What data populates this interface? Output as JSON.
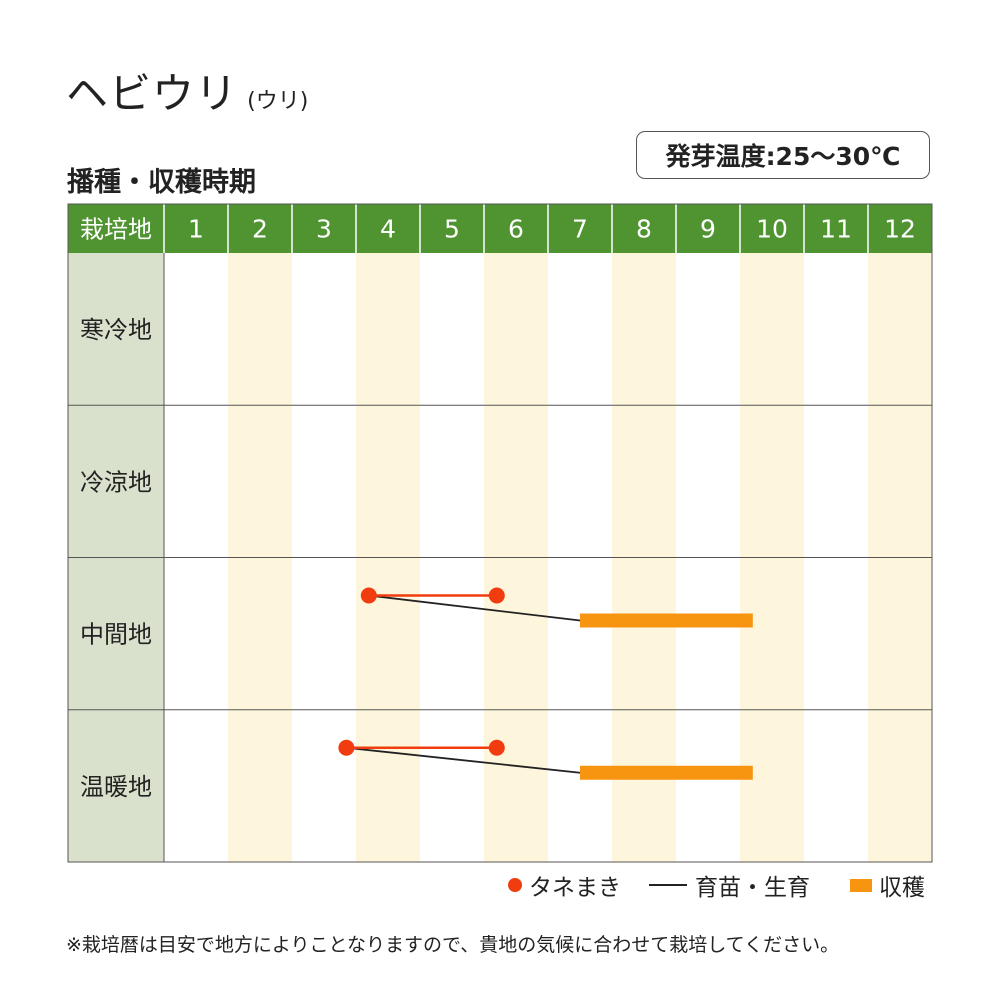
{
  "title": {
    "main": "ヘビウリ",
    "sub": "(ウリ)"
  },
  "subtitle": "播種・収穫時期",
  "germination_temp": "発芽温度:25〜30℃",
  "legend": {
    "sowing": "タネまき",
    "nursery": "育苗・生育",
    "harvest": "収穫"
  },
  "footnote": "※栽培暦は目安で地方によりことなりますので、貴地の気候に合わせて栽培してください。",
  "colors": {
    "header_green": "#4f9430",
    "label_bg": "#d9e1cc",
    "stripe": "#fdf6dc",
    "sowing": "#f03c0f",
    "harvest": "#f79410",
    "line": "#222222"
  },
  "chart_data": {
    "type": "table",
    "header_label": "栽培地",
    "months": [
      "1",
      "2",
      "3",
      "4",
      "5",
      "6",
      "7",
      "8",
      "9",
      "10",
      "11",
      "12"
    ],
    "regions": [
      {
        "name": "寒冷地",
        "sowing": null,
        "harvest": null
      },
      {
        "name": "冷涼地",
        "sowing": null,
        "harvest": null
      },
      {
        "name": "中間地",
        "sowing": [
          4.2,
          6.2
        ],
        "harvest": [
          7.5,
          10.2
        ]
      },
      {
        "name": "温暖地",
        "sowing": [
          3.85,
          6.2
        ],
        "harvest": [
          7.5,
          10.2
        ]
      }
    ]
  }
}
